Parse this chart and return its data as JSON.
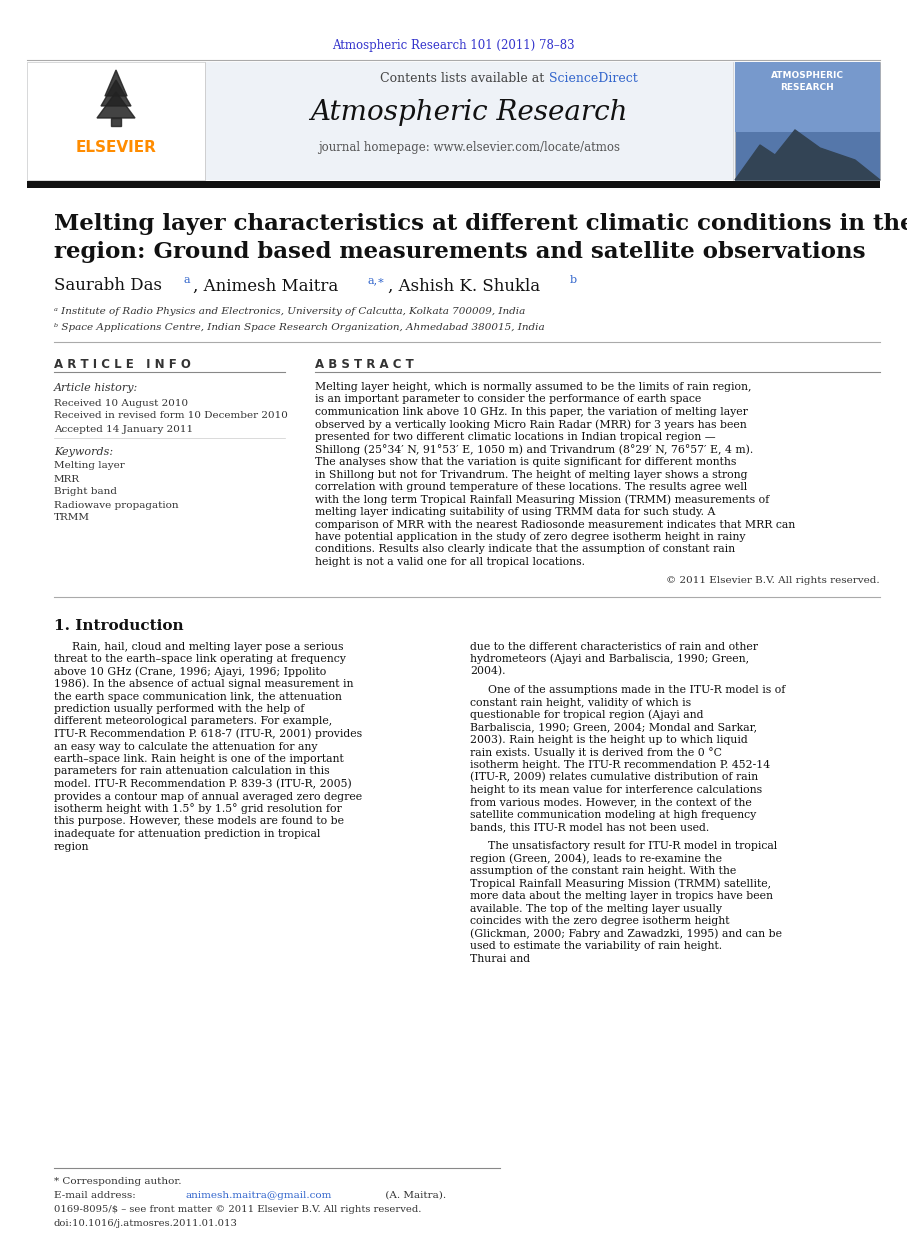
{
  "journal_ref": "Atmospheric Research 101 (2011) 78–83",
  "journal_ref_color": "#3333cc",
  "contents_text": "Contents lists available at ",
  "sciencedirect_text": "ScienceDirect",
  "sciencedirect_color": "#3366cc",
  "journal_name": "Atmospheric Research",
  "journal_homepage": "journal homepage: www.elsevier.com/locate/atmos",
  "elsevier_color": "#ff8c00",
  "title_line1": "Melting layer characteristics at different climatic conditions in the Indian",
  "title_line2": "region: Ground based measurements and satellite observations",
  "affil_a": "ᵃ Institute of Radio Physics and Electronics, University of Calcutta, Kolkata 700009, India",
  "affil_b": "ᵇ Space Applications Centre, Indian Space Research Organization, Ahmedabad 380015, India",
  "article_info_header": "A R T I C L E   I N F O",
  "article_history_header": "Article history:",
  "received1": "Received 10 August 2010",
  "received2": "Received in revised form 10 December 2010",
  "accepted": "Accepted 14 January 2011",
  "keywords_header": "Keywords:",
  "keywords": [
    "Melting layer",
    "MRR",
    "Bright band",
    "Radiowave propagation",
    "TRMM"
  ],
  "abstract_header": "A B S T R A C T",
  "abstract_text": "Melting layer height, which is normally assumed to be the limits of rain region, is an important parameter to consider the performance of earth space communication link above 10 GHz. In this paper, the variation of melting layer observed by a vertically looking Micro Rain Radar (MRR) for 3 years has been presented for two different climatic locations in Indian tropical region — Shillong (25°34′ N, 91°53′ E, 1050 m) and Trivandrum (8°29′ N, 76°57′ E, 4 m). The analyses show that the variation is quite significant for different months in Shillong but not for Trivandrum. The height of melting layer shows a strong correlation with ground temperature of these locations. The results agree well with the long term Tropical Rainfall Measuring Mission (TRMM) measurements of melting layer indicating suitability of using TRMM data for such study. A comparison of MRR with the nearest Radiosonde measurement indicates that MRR can have potential application in the study of zero degree isotherm height in rainy conditions. Results also clearly indicate that the assumption of constant rain height is not a valid one for all tropical locations.",
  "copyright_text": "© 2011 Elsevier B.V. All rights reserved.",
  "section1_header": "1. Introduction",
  "intro_col1": "Rain, hail, cloud and melting layer pose a serious threat to the earth–space link operating at frequency above 10 GHz (Crane, 1996; Ajayi, 1996; Ippolito 1986). In the absence of actual signal measurement in the earth space communication link, the attenuation prediction usually performed with the help of different meteorological parameters. For example, ITU-R Recommendation P. 618-7 (ITU-R, 2001) provides an easy way to calculate the attenuation for any earth–space link. Rain height is one of the important parameters for rain attenuation calculation in this model. ITU-R Recommendation P. 839-3 (ITU-R, 2005) provides a contour map of annual averaged zero degree isotherm height with 1.5° by 1.5° grid resolution for this purpose. However, these models are found to be inadequate for attenuation prediction in tropical region",
  "intro_col2": "due to the different characteristics of rain and other hydrometeors (Ajayi and Barbaliscia, 1990; Green, 2004).\n\nOne of the assumptions made in the ITU-R model is of constant rain height, validity of which is questionable for tropical region (Ajayi and Barbaliscia, 1990; Green, 2004; Mondal and Sarkar, 2003). Rain height is the height up to which liquid rain exists. Usually it is derived from the 0 °C isotherm height. The ITU-R recommendation P. 452-14 (ITU-R, 2009) relates cumulative distribution of rain height to its mean value for interference calculations from various modes. However, in the context of the satellite communication modeling at high frequency bands, this ITU-R model has not been used.\n\nThe unsatisfactory result for ITU-R model in tropical region (Green, 2004), leads to re-examine the assumption of the constant rain height. With the Tropical Rainfall Measuring Mission (TRMM) satellite, more data about the melting layer in tropics have been available. The top of the melting layer usually coincides with the zero degree isotherm height (Glickman, 2000; Fabry and Zawadzki, 1995) and can be used to estimate the variability of rain height. Thurai and",
  "footnote_star": "* Corresponding author.",
  "footnote_email_label": "E-mail address: ",
  "footnote_email_link": "animesh.maitra@gmail.com",
  "footnote_email_suffix": " (A. Maitra).",
  "footnote_issn": "0169-8095/$ – see front matter © 2011 Elsevier B.V. All rights reserved.",
  "footnote_doi": "doi:10.1016/j.atmosres.2011.01.013",
  "link_color": "#3366cc",
  "orange_color": "#ff8c00"
}
